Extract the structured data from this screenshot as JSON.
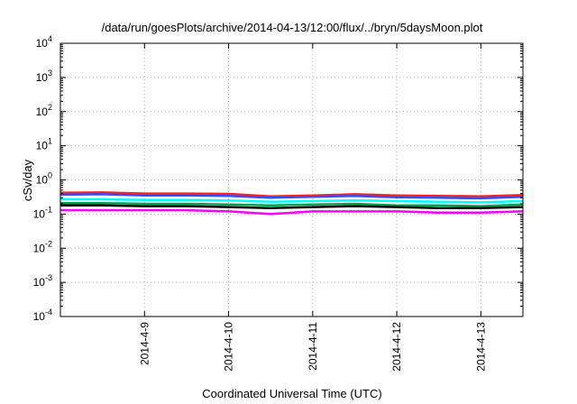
{
  "chart_data": {
    "type": "line",
    "title": "/data/run/goesPlots/archive/2014-04-13/12:00/flux/../bryn/5daysMoon.plot",
    "xlabel": "Coordinated Universal Time (UTC)",
    "ylabel": "cSv/day",
    "yscale": "log",
    "ylim": [
      0.0001,
      10000
    ],
    "yticks": [
      {
        "base": "10",
        "exp": "4"
      },
      {
        "base": "10",
        "exp": "3"
      },
      {
        "base": "10",
        "exp": "2"
      },
      {
        "base": "10",
        "exp": "1"
      },
      {
        "base": "10",
        "exp": "0"
      },
      {
        "base": "10",
        "exp": "-1"
      },
      {
        "base": "10",
        "exp": "-2"
      },
      {
        "base": "10",
        "exp": "-3"
      },
      {
        "base": "10",
        "exp": "-4"
      }
    ],
    "xlim": [
      "2014-04-08T00:00",
      "2014-04-13T12:00"
    ],
    "xticks": [
      "2014-4-9",
      "2014-4-10",
      "2014-4-11",
      "2014-4-12",
      "2014-4-13"
    ],
    "grid": true,
    "legend": false,
    "x": [
      "2014-04-08T00:00",
      "2014-04-08T12:00",
      "2014-04-09T00:00",
      "2014-04-09T12:00",
      "2014-04-10T00:00",
      "2014-04-10T12:00",
      "2014-04-11T00:00",
      "2014-04-11T12:00",
      "2014-04-12T00:00",
      "2014-04-12T12:00",
      "2014-04-13T00:00",
      "2014-04-13T12:00"
    ],
    "series": [
      {
        "color": "#ff2020",
        "values": [
          0.42,
          0.43,
          0.4,
          0.4,
          0.39,
          0.33,
          0.35,
          0.38,
          0.35,
          0.34,
          0.33,
          0.36
        ]
      },
      {
        "color": "#3050ff",
        "values": [
          0.37,
          0.38,
          0.35,
          0.35,
          0.34,
          0.3,
          0.32,
          0.34,
          0.31,
          0.3,
          0.29,
          0.32
        ]
      },
      {
        "color": "#00ffff",
        "values": [
          0.27,
          0.27,
          0.26,
          0.26,
          0.25,
          0.23,
          0.24,
          0.25,
          0.24,
          0.23,
          0.22,
          0.24
        ]
      },
      {
        "color": "#00a050",
        "values": [
          0.21,
          0.21,
          0.2,
          0.2,
          0.19,
          0.18,
          0.19,
          0.2,
          0.18,
          0.18,
          0.17,
          0.19
        ]
      },
      {
        "color": "#000000",
        "values": [
          0.18,
          0.18,
          0.17,
          0.17,
          0.16,
          0.15,
          0.16,
          0.17,
          0.16,
          0.15,
          0.15,
          0.16
        ]
      },
      {
        "color": "#ff00ff",
        "values": [
          0.13,
          0.13,
          0.13,
          0.13,
          0.12,
          0.1,
          0.12,
          0.12,
          0.12,
          0.11,
          0.11,
          0.12
        ]
      }
    ]
  }
}
